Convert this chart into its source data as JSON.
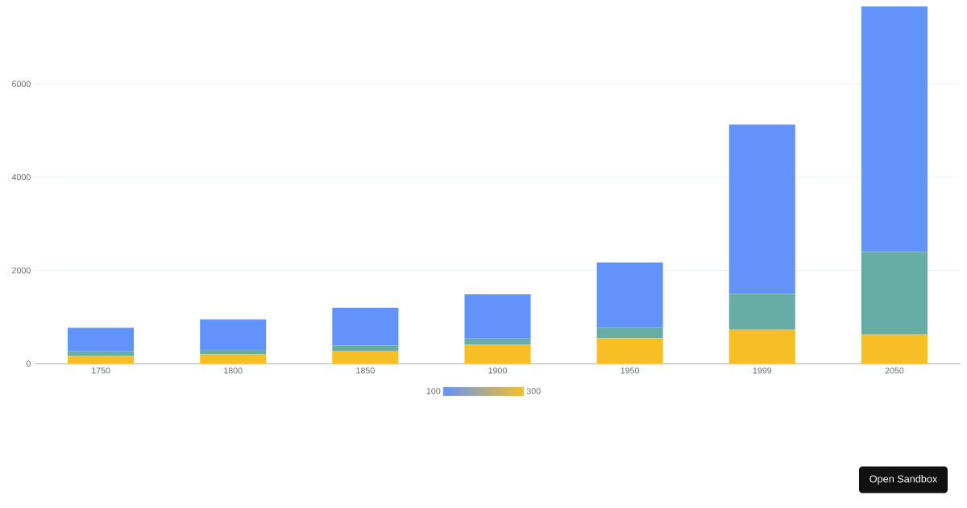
{
  "chart_data": {
    "type": "bar",
    "stacked": true,
    "categories": [
      "1750",
      "1800",
      "1850",
      "1900",
      "1950",
      "1999",
      "2050"
    ],
    "series": [
      {
        "color": "#f6bf26",
        "values": [
          163,
          203,
          276,
          408,
          547,
          729,
          628
        ]
      },
      {
        "color": "#67ada5",
        "values": [
          106,
          107,
          111,
          133,
          221,
          767,
          1766
        ]
      },
      {
        "color": "#6193fa",
        "values": [
          502,
          635,
          809,
          947,
          1402,
          3634,
          5268
        ]
      }
    ],
    "ylim": [
      0,
      7662
    ],
    "yticks": [
      0,
      2000,
      4000,
      6000
    ],
    "grid": "y",
    "annotations": [
      "100",
      "300",
      "Open Sandbox"
    ]
  }
}
